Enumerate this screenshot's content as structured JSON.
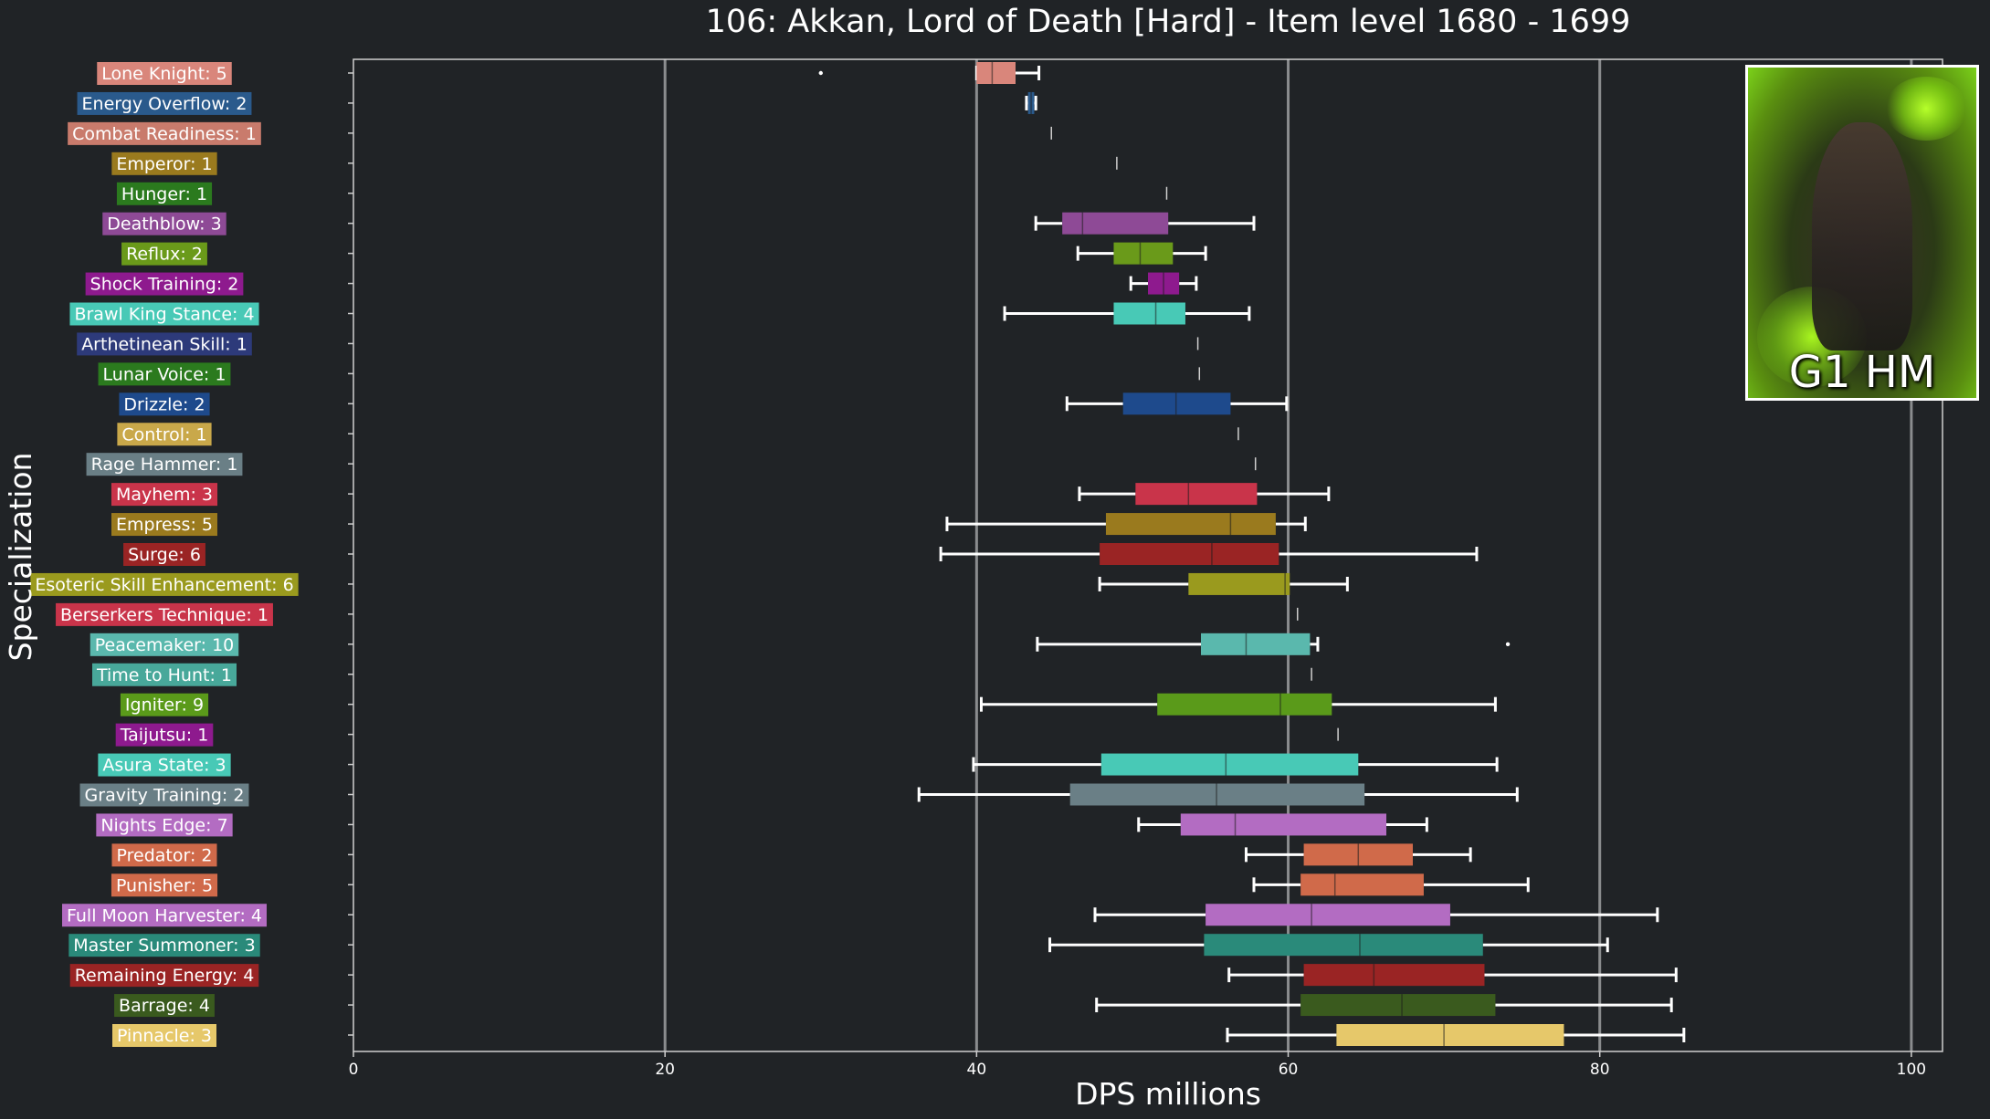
{
  "chart_data": {
    "type": "box",
    "title": "106: Akkan, Lord of Death [Hard] - Item level 1680 - 1699",
    "xlabel": "DPS millions",
    "ylabel": "Specialization",
    "xlim": [
      0,
      102
    ],
    "xticks": [
      0,
      20,
      40,
      60,
      80,
      100
    ],
    "grid": "vertical",
    "badge_text": "G1 HM",
    "categories": [
      {
        "label": "Lone Knight: 5",
        "color": "#d9867b",
        "min": 40.0,
        "q1": 40.0,
        "median": 41.0,
        "q3": 42.5,
        "max": 44.0,
        "outliers": [
          30.0
        ]
      },
      {
        "label": "Energy Overflow: 2",
        "color": "#2a5a8c",
        "min": 43.2,
        "q1": 43.3,
        "median": 43.5,
        "q3": 43.7,
        "max": 43.8,
        "outliers": []
      },
      {
        "label": "Combat Readiness: 1",
        "color": "#c97b6c",
        "min": 44.8,
        "q1": 44.8,
        "median": 44.8,
        "q3": 44.8,
        "max": 44.8,
        "outliers": []
      },
      {
        "label": "Emperor: 1",
        "color": "#9a7a1e",
        "min": 49.0,
        "q1": 49.0,
        "median": 49.0,
        "q3": 49.0,
        "max": 49.0,
        "outliers": []
      },
      {
        "label": "Hunger: 1",
        "color": "#2b7a1e",
        "min": 52.2,
        "q1": 52.2,
        "median": 52.2,
        "q3": 52.2,
        "max": 52.2,
        "outliers": []
      },
      {
        "label": "Deathblow: 3",
        "color": "#8e4a96",
        "min": 43.8,
        "q1": 45.5,
        "median": 46.8,
        "q3": 52.3,
        "max": 57.8,
        "outliers": []
      },
      {
        "label": "Reflux: 2",
        "color": "#6a9a1a",
        "min": 46.5,
        "q1": 48.8,
        "median": 50.5,
        "q3": 52.6,
        "max": 54.7,
        "outliers": []
      },
      {
        "label": "Shock Training: 2",
        "color": "#8e1a8e",
        "min": 49.9,
        "q1": 51.0,
        "median": 52.0,
        "q3": 53.0,
        "max": 54.1,
        "outliers": []
      },
      {
        "label": "Brawl King Stance: 4",
        "color": "#48c9b6",
        "min": 41.8,
        "q1": 48.8,
        "median": 51.5,
        "q3": 53.4,
        "max": 57.5,
        "outliers": []
      },
      {
        "label": "Arthetinean Skill: 1",
        "color": "#2d3a7a",
        "min": 54.2,
        "q1": 54.2,
        "median": 54.2,
        "q3": 54.2,
        "max": 54.2,
        "outliers": []
      },
      {
        "label": "Lunar Voice: 1",
        "color": "#2b7a1e",
        "min": 54.3,
        "q1": 54.3,
        "median": 54.3,
        "q3": 54.3,
        "max": 54.3,
        "outliers": []
      },
      {
        "label": "Drizzle: 2",
        "color": "#1e4a8c",
        "min": 45.8,
        "q1": 49.4,
        "median": 52.8,
        "q3": 56.3,
        "max": 59.9,
        "outliers": []
      },
      {
        "label": "Control: 1",
        "color": "#c9a84a",
        "min": 56.8,
        "q1": 56.8,
        "median": 56.8,
        "q3": 56.8,
        "max": 56.8,
        "outliers": []
      },
      {
        "label": "Rage Hammer: 1",
        "color": "#6a7f86",
        "min": 57.9,
        "q1": 57.9,
        "median": 57.9,
        "q3": 57.9,
        "max": 57.9,
        "outliers": []
      },
      {
        "label": "Mayhem: 3",
        "color": "#c9344a",
        "min": 46.6,
        "q1": 50.2,
        "median": 53.6,
        "q3": 58.0,
        "max": 62.6,
        "outliers": []
      },
      {
        "label": "Empress: 5",
        "color": "#9a7a1e",
        "min": 38.1,
        "q1": 48.3,
        "median": 56.3,
        "q3": 59.2,
        "max": 61.1,
        "outliers": []
      },
      {
        "label": "Surge: 6",
        "color": "#9a2424",
        "min": 37.7,
        "q1": 47.9,
        "median": 55.1,
        "q3": 59.4,
        "max": 72.1,
        "outliers": []
      },
      {
        "label": "Esoteric Skill Enhancement: 6",
        "color": "#9a9a1e",
        "min": 47.9,
        "q1": 53.6,
        "median": 59.8,
        "q3": 60.1,
        "max": 63.8,
        "outliers": []
      },
      {
        "label": "Berserkers Technique: 1",
        "color": "#c9344a",
        "min": 60.6,
        "q1": 60.6,
        "median": 60.6,
        "q3": 60.6,
        "max": 60.6,
        "outliers": []
      },
      {
        "label": "Peacemaker: 10",
        "color": "#5ab8ad",
        "min": 43.9,
        "q1": 54.4,
        "median": 57.3,
        "q3": 61.4,
        "max": 61.9,
        "outliers": [
          74.1
        ]
      },
      {
        "label": "Time to Hunt: 1",
        "color": "#48a89a",
        "min": 61.5,
        "q1": 61.5,
        "median": 61.5,
        "q3": 61.5,
        "max": 61.5,
        "outliers": []
      },
      {
        "label": "Igniter: 9",
        "color": "#5a9a1a",
        "min": 40.3,
        "q1": 51.6,
        "median": 59.5,
        "q3": 62.8,
        "max": 73.3,
        "outliers": []
      },
      {
        "label": "Taijutsu: 1",
        "color": "#8e1a8e",
        "min": 63.2,
        "q1": 63.2,
        "median": 63.2,
        "q3": 63.2,
        "max": 63.2,
        "outliers": []
      },
      {
        "label": "Asura State: 3",
        "color": "#48c9b6",
        "min": 39.8,
        "q1": 48.0,
        "median": 56.0,
        "q3": 64.5,
        "max": 73.4,
        "outliers": []
      },
      {
        "label": "Gravity Training: 2",
        "color": "#6a7f86",
        "min": 36.3,
        "q1": 46.0,
        "median": 55.4,
        "q3": 64.9,
        "max": 74.7,
        "outliers": []
      },
      {
        "label": "Nights Edge: 7",
        "color": "#b36cc2",
        "min": 50.4,
        "q1": 53.1,
        "median": 56.6,
        "q3": 66.3,
        "max": 68.9,
        "outliers": []
      },
      {
        "label": "Predator: 2",
        "color": "#d06a4a",
        "min": 57.3,
        "q1": 61.0,
        "median": 64.5,
        "q3": 68.0,
        "max": 71.7,
        "outliers": []
      },
      {
        "label": "Punisher: 5",
        "color": "#d06a4a",
        "min": 57.8,
        "q1": 60.8,
        "median": 63.0,
        "q3": 68.7,
        "max": 75.4,
        "outliers": []
      },
      {
        "label": "Full Moon Harvester: 4",
        "color": "#b36cc2",
        "min": 47.6,
        "q1": 54.7,
        "median": 61.5,
        "q3": 70.4,
        "max": 83.7,
        "outliers": []
      },
      {
        "label": "Master Summoner: 3",
        "color": "#2a8a7a",
        "min": 44.7,
        "q1": 54.6,
        "median": 64.6,
        "q3": 72.5,
        "max": 80.5,
        "outliers": []
      },
      {
        "label": "Remaining Energy: 4",
        "color": "#9a2424",
        "min": 56.2,
        "q1": 61.0,
        "median": 65.5,
        "q3": 72.6,
        "max": 84.9,
        "outliers": []
      },
      {
        "label": "Barrage: 4",
        "color": "#3a5a1e",
        "min": 47.7,
        "q1": 60.8,
        "median": 67.3,
        "q3": 73.3,
        "max": 84.6,
        "outliers": []
      },
      {
        "label": "Pinnacle: 3",
        "color": "#e6c86a",
        "min": 56.1,
        "q1": 63.1,
        "median": 70.0,
        "q3": 77.7,
        "max": 85.4,
        "outliers": []
      }
    ]
  }
}
